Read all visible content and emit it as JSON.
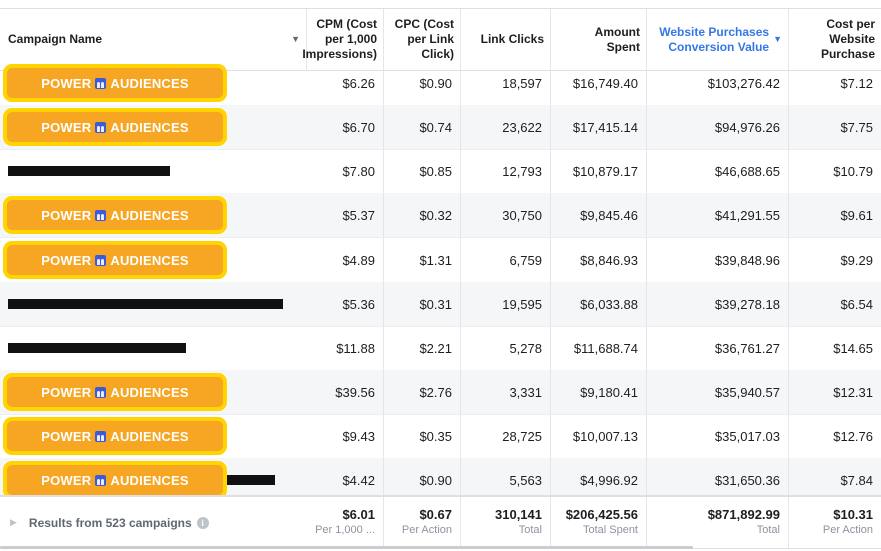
{
  "header": {
    "campaign_name": "Campaign Name",
    "cpm": "CPM (Cost per 1,000 Impressions)",
    "cpc": "CPC (Cost per Link Click)",
    "link_clicks": "Link Clicks",
    "amount_spent": "Amount Spent",
    "website_purchases_value": "Website Purchases Conversion Value",
    "cost_per_purchase": "Cost per Website Purchase"
  },
  "badge": {
    "left": "POWER",
    "right": "AUDIENCES",
    "icon": "people-icon"
  },
  "rows": [
    {
      "cpm": "$6.26",
      "cpc": "$0.90",
      "clicks": "18,597",
      "spent": "$16,749.40",
      "value": "$103,276.42",
      "cpp": "$7.12"
    },
    {
      "cpm": "$6.70",
      "cpc": "$0.74",
      "clicks": "23,622",
      "spent": "$17,415.14",
      "value": "$94,976.26",
      "cpp": "$7.75"
    },
    {
      "cpm": "$7.80",
      "cpc": "$0.85",
      "clicks": "12,793",
      "spent": "$10,879.17",
      "value": "$46,688.65",
      "cpp": "$10.79"
    },
    {
      "cpm": "$5.37",
      "cpc": "$0.32",
      "clicks": "30,750",
      "spent": "$9,845.46",
      "value": "$41,291.55",
      "cpp": "$9.61"
    },
    {
      "cpm": "$4.89",
      "cpc": "$1.31",
      "clicks": "6,759",
      "spent": "$8,846.93",
      "value": "$39,848.96",
      "cpp": "$9.29"
    },
    {
      "cpm": "$5.36",
      "cpc": "$0.31",
      "clicks": "19,595",
      "spent": "$6,033.88",
      "value": "$39,278.18",
      "cpp": "$6.54"
    },
    {
      "cpm": "$11.88",
      "cpc": "$2.21",
      "clicks": "5,278",
      "spent": "$11,688.74",
      "value": "$36,761.27",
      "cpp": "$14.65"
    },
    {
      "cpm": "$39.56",
      "cpc": "$2.76",
      "clicks": "3,331",
      "spent": "$9,180.41",
      "value": "$35,940.57",
      "cpp": "$12.31"
    },
    {
      "cpm": "$9.43",
      "cpc": "$0.35",
      "clicks": "28,725",
      "spent": "$10,007.13",
      "value": "$35,017.03",
      "cpp": "$12.76"
    },
    {
      "cpm": "$4.42",
      "cpc": "$0.90",
      "clicks": "5,563",
      "spent": "$4,996.92",
      "value": "$31,650.36",
      "cpp": "$7.84"
    }
  ],
  "footer": {
    "label": "Results from 523 campaigns",
    "cpm": "$6.01",
    "cpm_sub": "Per 1,000 ...",
    "cpc": "$0.67",
    "cpc_sub": "Per Action",
    "clicks": "310,141",
    "clicks_sub": "Total",
    "spent": "$206,425.56",
    "spent_sub": "Total Spent",
    "value": "$871,892.99",
    "value_sub": "Total",
    "cpp": "$10.31",
    "cpp_sub": "Per Action"
  },
  "colors": {
    "badge_bg": "#f6a623",
    "badge_border": "#ffd400",
    "sorted_header": "#3578e5"
  }
}
